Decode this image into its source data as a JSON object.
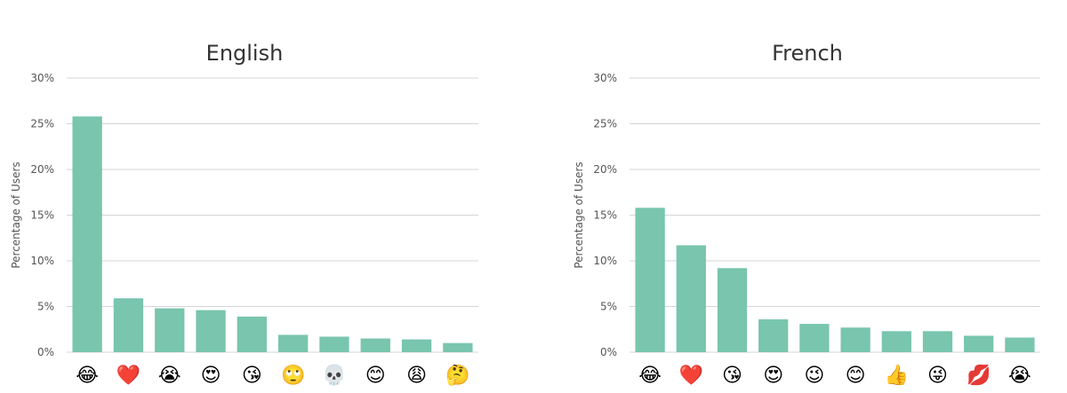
{
  "chart_data": [
    {
      "type": "bar",
      "title": "English",
      "ylabel": "Percentage of Users",
      "xlabel": "",
      "ylim": [
        0,
        30
      ],
      "yticks": [
        "0%",
        "5%",
        "10%",
        "15%",
        "20%",
        "25%",
        "30%"
      ],
      "ytick_values": [
        0,
        5,
        10,
        15,
        20,
        25,
        30
      ],
      "grid": true,
      "bar_color": "#79c5ae",
      "categories": [
        "😂",
        "❤️",
        "😭",
        "😍",
        "😘",
        "🙄",
        "💀",
        "😊",
        "😩",
        "🤔"
      ],
      "category_icons": [
        "tears-of-joy-emoji",
        "red-heart-emoji",
        "loudly-crying-emoji",
        "heart-eyes-emoji",
        "blowing-kiss-emoji",
        "eye-roll-emoji",
        "skull-emoji",
        "smiling-blush-emoji",
        "weary-emoji",
        "thinking-emoji"
      ],
      "values": [
        25.8,
        5.9,
        4.8,
        4.6,
        3.9,
        1.9,
        1.7,
        1.5,
        1.4,
        1.0
      ]
    },
    {
      "type": "bar",
      "title": "French",
      "ylabel": "Percentage of Users",
      "xlabel": "",
      "ylim": [
        0,
        30
      ],
      "yticks": [
        "0%",
        "5%",
        "10%",
        "15%",
        "20%",
        "25%",
        "30%"
      ],
      "ytick_values": [
        0,
        5,
        10,
        15,
        20,
        25,
        30
      ],
      "grid": true,
      "bar_color": "#79c5ae",
      "categories": [
        "😂",
        "❤️",
        "😘",
        "😍",
        "😉",
        "😊",
        "👍",
        "😜",
        "💋",
        "😭"
      ],
      "category_icons": [
        "tears-of-joy-emoji",
        "red-heart-emoji",
        "blowing-kiss-emoji",
        "heart-eyes-emoji",
        "winking-emoji",
        "smiling-blush-emoji",
        "thumbs-up-emoji",
        "winking-tongue-emoji",
        "kiss-mark-emoji",
        "loudly-crying-emoji"
      ],
      "values": [
        15.8,
        11.7,
        9.2,
        3.6,
        3.1,
        2.7,
        2.3,
        2.3,
        1.8,
        1.6
      ]
    }
  ]
}
